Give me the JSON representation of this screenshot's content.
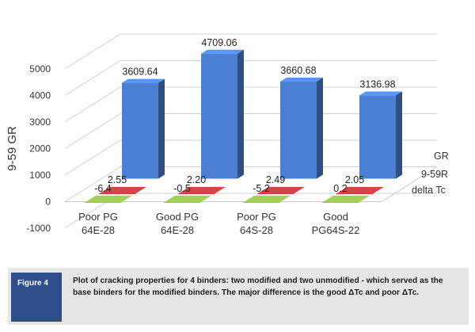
{
  "chart_data": {
    "type": "bar",
    "style": "3d",
    "categories": [
      "Poor PG\n64E-28",
      "Good PG\n64E-28",
      "Poor PG\n64S-28",
      "Good\nPG64S-22"
    ],
    "series": [
      {
        "name": "GR",
        "values": [
          3609.64,
          4709.06,
          3660.68,
          3136.98
        ],
        "labels": [
          "3609.64",
          "4709.06",
          "3660.68",
          "3136.98"
        ],
        "color": "#4a7fd4"
      },
      {
        "name": "9-59R",
        "values": [
          2.55,
          2.2,
          2.49,
          2.05
        ],
        "labels": [
          "2.55",
          "2.20",
          "2.49",
          "2.05"
        ],
        "color": "#b23b3b"
      },
      {
        "name": "delta Tc",
        "values": [
          -6.4,
          -0.5,
          -5.2,
          0.2
        ],
        "labels": [
          "-6.4",
          "-0.5",
          "-5.2",
          "0.2"
        ],
        "color": "#8ab04a"
      }
    ],
    "ylabel": "9-59 GR",
    "ylim": [
      -1000,
      5000
    ],
    "yticks": [
      "-1000",
      "0",
      "1000",
      "2000",
      "3000",
      "4000",
      "5000"
    ],
    "grid": true
  },
  "caption": {
    "label": "Figure 4",
    "text": "Plot of cracking properties for 4 binders: two modified and two unmodified - which served as the base binders for the modified binders. The major difference is the good ΔTc and poor ΔTc."
  }
}
